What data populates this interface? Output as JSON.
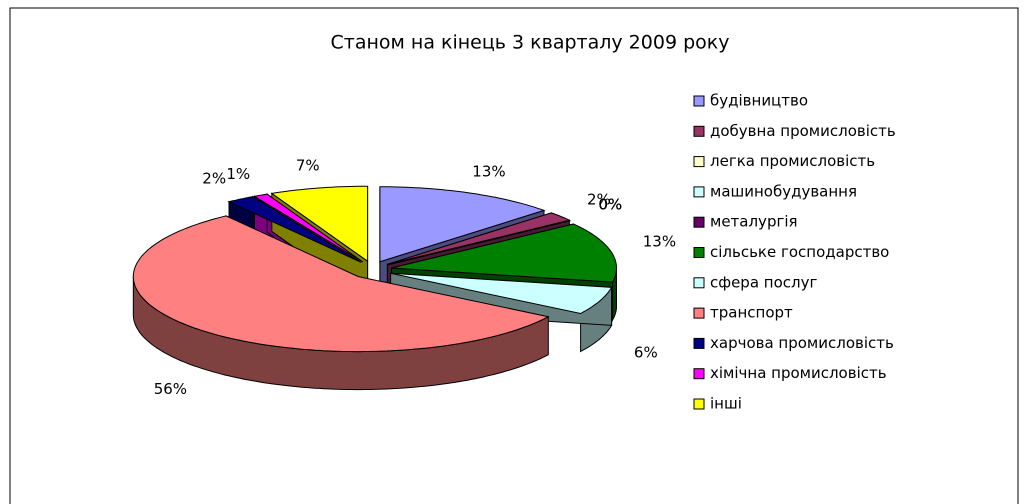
{
  "chart_data": {
    "type": "pie",
    "title": "Станом на кінець 3 кварталу 2009 року",
    "categories": [
      "будівництво",
      "добувна промисловість",
      "легка промисловість",
      "машинобудування",
      "металургія",
      "сільське господарство",
      "сфера послуг",
      "транспорт",
      "харчова промисловість",
      "хімічна промисловість",
      "інші"
    ],
    "values": [
      13,
      2,
      0,
      0,
      0,
      13,
      6,
      56,
      2,
      1,
      7
    ],
    "value_labels": [
      "13%",
      "2%",
      "0%",
      "0%",
      "0%",
      "13%",
      "6%",
      "56%",
      "2%",
      "1%",
      "7%"
    ],
    "colors": [
      "#9999ff",
      "#993366",
      "#ffffcc",
      "#ccffff",
      "#660066",
      "#008000",
      "#ccffff",
      "#ff8080",
      "#000080",
      "#ff00ff",
      "#ffff00"
    ],
    "legend": "right"
  }
}
